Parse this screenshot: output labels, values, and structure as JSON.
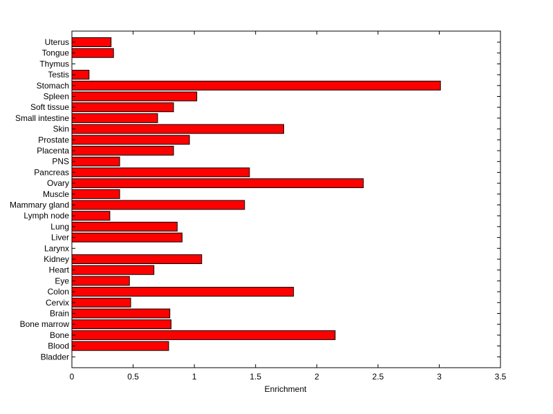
{
  "chart_data": {
    "type": "bar",
    "orientation": "horizontal",
    "title": "",
    "xlabel": "Enrichment",
    "ylabel": "",
    "xlim": [
      0,
      3.5
    ],
    "xticks": [
      0,
      0.5,
      1,
      1.5,
      2,
      2.5,
      3,
      3.5
    ],
    "xtick_labels": [
      "0",
      "0.5",
      "1",
      "1.5",
      "2",
      "2.5",
      "3",
      "3.5"
    ],
    "grid": false,
    "legend": "none",
    "bar_color": "#ff0000",
    "bar_edge_color": "#000000",
    "categories": [
      "Uterus",
      "Tongue",
      "Thymus",
      "Testis",
      "Stomach",
      "Spleen",
      "Soft tissue",
      "Small intestine",
      "Skin",
      "Prostate",
      "Placenta",
      "PNS",
      "Pancreas",
      "Ovary",
      "Muscle",
      "Mammary gland",
      "Lymph node",
      "Lung",
      "Liver",
      "Larynx",
      "Kidney",
      "Heart",
      "Eye",
      "Colon",
      "Cervix",
      "Brain",
      "Bone marrow",
      "Bone",
      "Blood",
      "Bladder"
    ],
    "values": [
      0.32,
      0.34,
      0,
      0.14,
      3.01,
      1.02,
      0.83,
      0.7,
      1.73,
      0.96,
      0.83,
      0.39,
      1.45,
      2.38,
      0.39,
      1.41,
      0.31,
      0.86,
      0.9,
      0,
      1.06,
      0.67,
      0.47,
      1.81,
      0.48,
      0.8,
      0.81,
      2.15,
      0.79,
      0
    ]
  }
}
